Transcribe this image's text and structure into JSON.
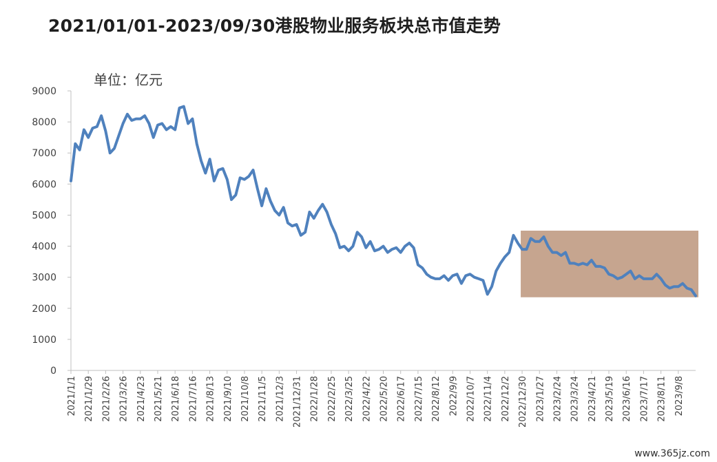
{
  "title": "2021/01/01-2023/09/30港股物业服务板块总市值走势",
  "unit_label": "单位：亿元",
  "watermark": "www.365jz.com",
  "colors": {
    "line": "#4f81bd",
    "highlight_fill": "#c6a58f",
    "axis": "#bfbfbf",
    "text": "#404040"
  },
  "chart_data": {
    "type": "line",
    "title": "2021/01/01-2023/09/30港股物业服务板块总市值走势",
    "ylabel": "单位：亿元",
    "ylim": [
      0,
      9000
    ],
    "yticks": [
      0,
      1000,
      2000,
      3000,
      4000,
      5000,
      6000,
      7000,
      8000,
      9000
    ],
    "xtick_labels": [
      "2021/1/1",
      "2021/1/29",
      "2021/2/26",
      "2021/3/26",
      "2021/4/23",
      "2021/5/21",
      "2021/6/18",
      "2021/7/16",
      "2021/8/13",
      "2021/9/10",
      "2021/10/8",
      "2021/11/5",
      "2021/12/3",
      "2021/12/31",
      "2022/1/28",
      "2022/2/25",
      "2022/3/25",
      "2022/4/22",
      "2022/5/20",
      "2022/6/17",
      "2022/7/15",
      "2022/8/12",
      "2022/9/9",
      "2022/10/7",
      "2022/11/4",
      "2022/12/2",
      "2022/12/30",
      "2023/1/27",
      "2023/2/24",
      "2023/3/24",
      "2023/4/21",
      "2023/5/19",
      "2023/6/16",
      "2023/7/17",
      "2023/8/11",
      "2023/9/8"
    ],
    "highlight_region": {
      "from_week": 104,
      "to_week": 144,
      "y_from": 2400,
      "y_to": 4500
    },
    "series": [
      {
        "values": [
          6100,
          7300,
          7100,
          7750,
          7500,
          7800,
          7850,
          8200,
          7700,
          7000,
          7150,
          7550,
          7950,
          8250,
          8050,
          8100,
          8100,
          8200,
          7950,
          7500,
          7900,
          7950,
          7750,
          7850,
          7750,
          8450,
          8500,
          7950,
          8100,
          7300,
          6750,
          6350,
          6800,
          6100,
          6450,
          6500,
          6150,
          5500,
          5650,
          6200,
          6150,
          6250,
          6450,
          5850,
          5300,
          5850,
          5450,
          5150,
          5000,
          5250,
          4750,
          4650,
          4700,
          4350,
          4450,
          5100,
          4900,
          5150,
          5350,
          5100,
          4700,
          4400,
          3950,
          4000,
          3850,
          4000,
          4450,
          4300,
          3950,
          4150,
          3850,
          3900,
          4000,
          3800,
          3900,
          3950,
          3800,
          4000,
          4100,
          3950,
          3400,
          3300,
          3100,
          3000,
          2950,
          2950,
          3050,
          2900,
          3050,
          3100,
          2800,
          3050,
          3100,
          3000,
          2950,
          2900,
          2450,
          2700,
          3200,
          3450,
          3650,
          3800,
          4350,
          4100,
          3900,
          3900,
          4250,
          4150,
          4150,
          4300,
          4000,
          3800,
          3800,
          3700,
          3800,
          3450,
          3450,
          3400,
          3450,
          3400,
          3550,
          3350,
          3350,
          3300,
          3100,
          3050,
          2950,
          3000,
          3100,
          3200,
          2950,
          3050,
          2950,
          2950,
          2950,
          3100,
          2950,
          2750,
          2650,
          2700,
          2700,
          2800,
          2650,
          2600,
          2400
        ]
      }
    ]
  }
}
